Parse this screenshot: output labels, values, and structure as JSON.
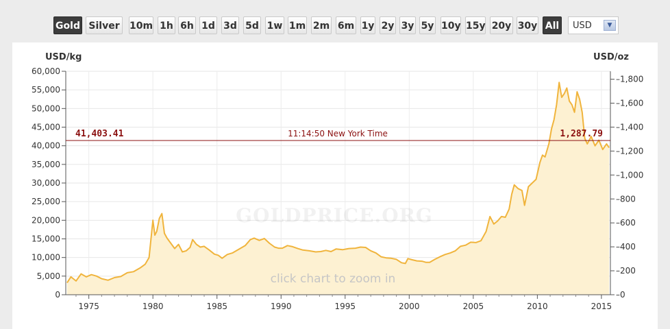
{
  "toolbar": {
    "metals": [
      {
        "label": "Gold",
        "active": true
      },
      {
        "label": "Silver",
        "active": false
      }
    ],
    "ranges": [
      {
        "label": "10m",
        "active": false
      },
      {
        "label": "1h",
        "active": false
      },
      {
        "label": "6h",
        "active": false
      },
      {
        "label": "1d",
        "active": false
      },
      {
        "label": "3d",
        "active": false
      },
      {
        "label": "5d",
        "active": false
      },
      {
        "label": "1w",
        "active": false
      },
      {
        "label": "1m",
        "active": false
      },
      {
        "label": "2m",
        "active": false
      },
      {
        "label": "6m",
        "active": false
      },
      {
        "label": "1y",
        "active": false
      },
      {
        "label": "2y",
        "active": false
      },
      {
        "label": "3y",
        "active": false
      },
      {
        "label": "5y",
        "active": false
      },
      {
        "label": "10y",
        "active": false
      },
      {
        "label": "15y",
        "active": false
      },
      {
        "label": "20y",
        "active": false
      },
      {
        "label": "30y",
        "active": false
      },
      {
        "label": "All",
        "active": true
      }
    ],
    "currency": "USD"
  },
  "chart_data": {
    "type": "area",
    "left_unit": "USD/kg",
    "right_unit": "USD/oz",
    "current_left": "41,403.41",
    "current_right": "1,287.79",
    "current_time": "11:14:50 New York Time",
    "watermark": "GOLDPRICE.ORG",
    "hint": "click chart to zoom in",
    "xlim": [
      1973.2,
      2015.7
    ],
    "ylim": [
      0,
      60000
    ],
    "y_ticks": [
      "0",
      "5,000",
      "10,000",
      "15,000",
      "20,000",
      "25,000",
      "30,000",
      "35,000",
      "40,000",
      "45,000",
      "50,000",
      "55,000",
      "60,000"
    ],
    "y_tick_values": [
      0,
      5000,
      10000,
      15000,
      20000,
      25000,
      30000,
      35000,
      40000,
      45000,
      50000,
      55000,
      60000
    ],
    "y2_ticks": [
      "0",
      "200",
      "400",
      "600",
      "800",
      "1,000",
      "1,200",
      "1,400",
      "1,600",
      "1,800"
    ],
    "y2_tick_values": [
      0,
      200,
      400,
      600,
      800,
      1000,
      1200,
      1400,
      1600,
      1800
    ],
    "x_ticks": [
      "1975",
      "1980",
      "1985",
      "1990",
      "1995",
      "2000",
      "2005",
      "2010",
      "2015"
    ],
    "x_tick_values": [
      1975,
      1980,
      1985,
      1990,
      1995,
      2000,
      2005,
      2010,
      2015
    ],
    "grid": true,
    "colors": {
      "line": "#f0b43c",
      "fill": "#fdf1d2",
      "current": "#8b1010"
    },
    "series": [
      {
        "x": [
          1973.3,
          1973.6,
          1974.0,
          1974.4,
          1974.8,
          1975.2,
          1975.6,
          1976.0,
          1976.5,
          1977.0,
          1977.5,
          1978.0,
          1978.5,
          1979.0,
          1979.4,
          1979.7,
          1980.0,
          1980.15,
          1980.3,
          1980.5,
          1980.7,
          1980.9,
          1981.1,
          1981.4,
          1981.7,
          1982.0,
          1982.3,
          1982.6,
          1982.9,
          1983.1,
          1983.4,
          1983.7,
          1984.0,
          1984.4,
          1984.8,
          1985.1,
          1985.4,
          1985.8,
          1986.2,
          1986.5,
          1986.8,
          1987.2,
          1987.6,
          1987.9,
          1988.3,
          1988.7,
          1989.1,
          1989.5,
          1989.8,
          1990.1,
          1990.5,
          1990.9,
          1991.3,
          1991.7,
          1992.2,
          1992.7,
          1993.1,
          1993.5,
          1993.9,
          1994.3,
          1994.8,
          1995.3,
          1995.8,
          1996.2,
          1996.6,
          1997.0,
          1997.4,
          1997.8,
          1998.2,
          1998.6,
          1999.0,
          1999.4,
          1999.7,
          1999.9,
          2000.2,
          2000.6,
          2001.0,
          2001.3,
          2001.6,
          2002.0,
          2002.4,
          2002.8,
          2003.2,
          2003.6,
          2004.0,
          2004.4,
          2004.8,
          2005.2,
          2005.6,
          2006.0,
          2006.3,
          2006.6,
          2006.9,
          2007.2,
          2007.5,
          2007.8,
          2008.0,
          2008.2,
          2008.5,
          2008.8,
          2009.0,
          2009.3,
          2009.6,
          2009.9,
          2010.2,
          2010.4,
          2010.6,
          2010.9,
          2011.1,
          2011.3,
          2011.5,
          2011.7,
          2011.9,
          2012.1,
          2012.3,
          2012.5,
          2012.7,
          2012.9,
          2013.1,
          2013.3,
          2013.5,
          2013.7,
          2013.9,
          2014.2,
          2014.5,
          2014.8,
          2015.1,
          2015.4,
          2015.6
        ],
        "values": [
          3200,
          4800,
          3700,
          5600,
          4800,
          5400,
          5000,
          4300,
          3900,
          4600,
          4900,
          5900,
          6200,
          7200,
          8200,
          10000,
          20000,
          16000,
          17000,
          20500,
          21800,
          16500,
          15200,
          13800,
          12400,
          13500,
          11500,
          11800,
          12700,
          14800,
          13500,
          12800,
          13000,
          12000,
          10900,
          10600,
          9800,
          10800,
          11200,
          11800,
          12400,
          13200,
          14800,
          15200,
          14600,
          15100,
          13800,
          12800,
          12500,
          12500,
          13200,
          12900,
          12400,
          12000,
          11800,
          11500,
          11600,
          11900,
          11600,
          12300,
          12100,
          12400,
          12500,
          12800,
          12700,
          11800,
          11200,
          10200,
          9900,
          9800,
          9500,
          8600,
          8400,
          9700,
          9400,
          9100,
          9000,
          8700,
          8700,
          9500,
          10200,
          10800,
          11200,
          11800,
          13000,
          13300,
          14100,
          14000,
          14500,
          17000,
          21000,
          19000,
          19800,
          21000,
          20800,
          23000,
          27000,
          29500,
          28500,
          28000,
          24000,
          29000,
          30000,
          31000,
          35500,
          37500,
          37000,
          40500,
          44500,
          47000,
          51000,
          57000,
          53000,
          54000,
          55500,
          52000,
          51000,
          49000,
          54500,
          52500,
          49000,
          42000,
          40500,
          42500,
          40000,
          41500,
          39000,
          40500,
          39500
        ]
      }
    ]
  }
}
